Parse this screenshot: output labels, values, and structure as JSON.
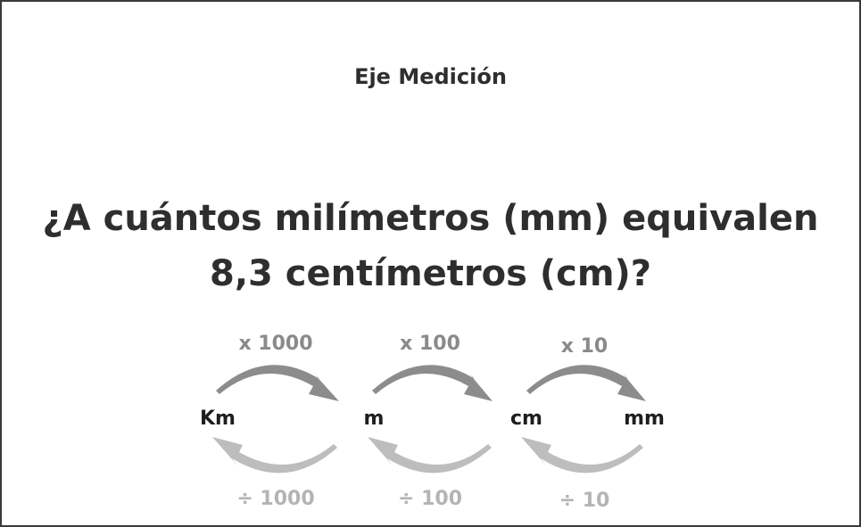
{
  "header": {
    "subtitle": "Eje Medición"
  },
  "question": {
    "line1": "¿A cuántos milímetros (mm) equivalen",
    "line2": "8,3 centímetros (cm)?"
  },
  "units": [
    "Km",
    "m",
    "cm",
    "mm"
  ],
  "multiply_labels": [
    "x 1000",
    "x 100",
    "x 10"
  ],
  "divide_labels": [
    "÷ 1000",
    "÷ 100",
    "÷ 10"
  ],
  "colors": {
    "forward_arrow": "#8c8c8c",
    "backward_arrow": "#bdbdbd",
    "text": "#2e2e2e"
  }
}
